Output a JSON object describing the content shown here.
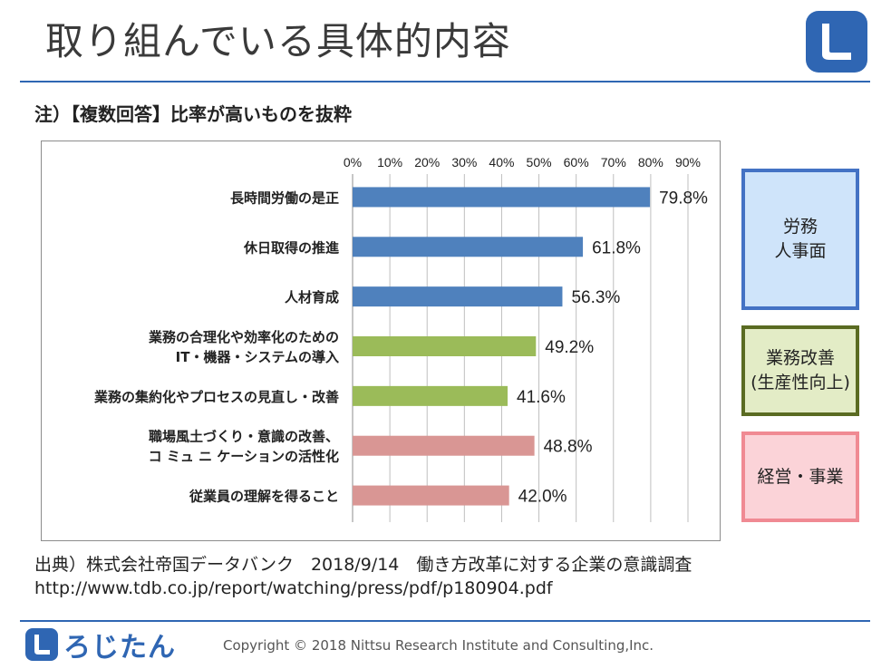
{
  "header": {
    "title": "取り組んでいる具体的内容"
  },
  "subtitle": "注）【複数回答】比率が高いものを抜粋",
  "chart_data": {
    "type": "bar",
    "orientation": "horizontal",
    "title": "",
    "xlim": [
      0,
      90
    ],
    "ticks": [
      "0%",
      "10%",
      "20%",
      "30%",
      "40%",
      "50%",
      "60%",
      "70%",
      "80%",
      "90%"
    ],
    "tick_values": [
      0,
      10,
      20,
      30,
      40,
      50,
      60,
      70,
      80,
      90
    ],
    "grid": true,
    "categories": [
      [
        "長時間労働の是正"
      ],
      [
        "休日取得の推進"
      ],
      [
        "人材育成"
      ],
      [
        "業務の合理化や効率化のための",
        "IT・機器・システムの導入"
      ],
      [
        "業務の集約化やプロセスの見直し・改善"
      ],
      [
        "職場風土づくり・意識の改善、",
        "コ ミュ ニ ケーションの活性化"
      ],
      [
        "従業員の理解を得ること"
      ]
    ],
    "values": [
      79.8,
      61.8,
      56.3,
      49.2,
      41.6,
      48.8,
      42.0
    ],
    "value_labels": [
      "79.8%",
      "61.8%",
      "56.3%",
      "49.2%",
      "41.6%",
      "48.8%",
      "42.0%"
    ],
    "groups": [
      "labor",
      "labor",
      "labor",
      "business",
      "business",
      "management",
      "management"
    ],
    "colors": {
      "labor": "#4f81bd",
      "business": "#9bbb59",
      "management": "#d99694"
    }
  },
  "legend": {
    "labor": [
      "労務",
      "人事面"
    ],
    "business": [
      "業務改善",
      "(生産性向上)"
    ],
    "management": [
      "経営・事業"
    ]
  },
  "source": {
    "line1": "出典）株式会社帝国データバンク　2018/9/14　働き方改革に対する企業の意識調査",
    "line2": "http://www.tdb.co.jp/report/watching/press/pdf/p180904.pdf"
  },
  "footer": {
    "brand": "ろじたん",
    "copyright": "Copyright © 2018 Nittsu Research Institute and Consulting,Inc."
  }
}
